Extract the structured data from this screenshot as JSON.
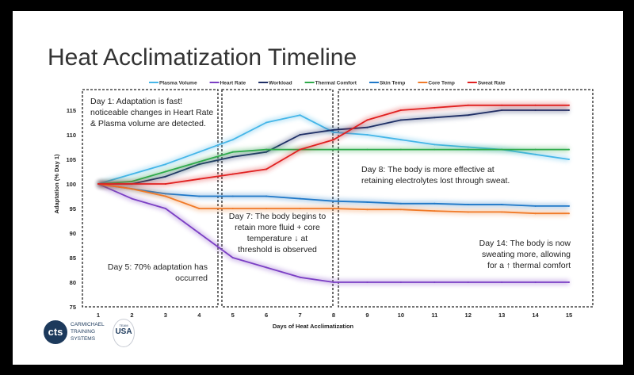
{
  "slide": {
    "title": "Heat Acclimatization Timeline",
    "logos": {
      "cts": "CARMICHAEL TRAINING SYSTEMS",
      "cts_mark": "cts",
      "usa_team": "TEAM",
      "usa": "USA"
    }
  },
  "chart_data": {
    "type": "line",
    "title": "",
    "xlabel": "Days of Heat Acclimatization",
    "ylabel": "Adaptation (% Day 1)",
    "xlim": [
      1,
      15
    ],
    "ylim": [
      75,
      118
    ],
    "yticks": [
      75,
      80,
      85,
      90,
      95,
      100,
      105,
      110,
      115
    ],
    "x": [
      1,
      2,
      3,
      4,
      5,
      6,
      7,
      8,
      9,
      10,
      11,
      12,
      13,
      14,
      15
    ],
    "grid": false,
    "legend": "top",
    "series": [
      {
        "name": "Plasma Volume",
        "color": "#45b6e8",
        "values": [
          100,
          102,
          104,
          106.5,
          109,
          112.5,
          114,
          110.5,
          110,
          109,
          108,
          107.5,
          107,
          106,
          105
        ]
      },
      {
        "name": "Heart Rate",
        "color": "#7b3fc4",
        "values": [
          100,
          97,
          95,
          90,
          85,
          83,
          81,
          80,
          80,
          80,
          80,
          80,
          80,
          80,
          80
        ]
      },
      {
        "name": "Workload",
        "color": "#1f2f66",
        "values": [
          100,
          100,
          101.5,
          104,
          105.5,
          106.5,
          110,
          111,
          111.5,
          113,
          113.5,
          114,
          115,
          115,
          115
        ]
      },
      {
        "name": "Thermal Comfort",
        "color": "#2eaa4a",
        "values": [
          100,
          100.5,
          102.5,
          104.5,
          106.5,
          107,
          107,
          107,
          107,
          107,
          107,
          107,
          107,
          107,
          107
        ]
      },
      {
        "name": "Skin Temp",
        "color": "#1f78c8",
        "values": [
          100,
          99,
          98,
          97.5,
          97.5,
          97.5,
          97,
          96.5,
          96.3,
          96,
          96,
          95.8,
          95.8,
          95.5,
          95.5
        ]
      },
      {
        "name": "Core Temp",
        "color": "#f07a28",
        "values": [
          100,
          99,
          97.5,
          95,
          95,
          95,
          95,
          95,
          94.8,
          94.8,
          94.5,
          94.3,
          94.3,
          94,
          94
        ]
      },
      {
        "name": "Sweat Rate",
        "color": "#e02020",
        "values": [
          100,
          100,
          100,
          101,
          102,
          103,
          107,
          109,
          113,
          115,
          115.5,
          116,
          116,
          116,
          116
        ]
      }
    ],
    "annotations": [
      {
        "id": "day1",
        "lines": [
          "Day 1: Adaptation is fast!",
          "noticeable changes in Heart Rate",
          "& Plasma volume are detected."
        ]
      },
      {
        "id": "day5",
        "lines": [
          "Day 5: 70% adaptation has",
          "occurred"
        ]
      },
      {
        "id": "day7",
        "lines": [
          "Day 7: The body begins to",
          "retain more fluid + core",
          "temperature ↓ at",
          "threshold is observed"
        ]
      },
      {
        "id": "day8",
        "lines": [
          "Day 8: The body is more effective at",
          "retaining electrolytes lost through sweat."
        ]
      },
      {
        "id": "day14",
        "lines": [
          "Day 14:  The body is now",
          "sweating more, allowing",
          "for a ↑ thermal comfort"
        ]
      }
    ]
  }
}
